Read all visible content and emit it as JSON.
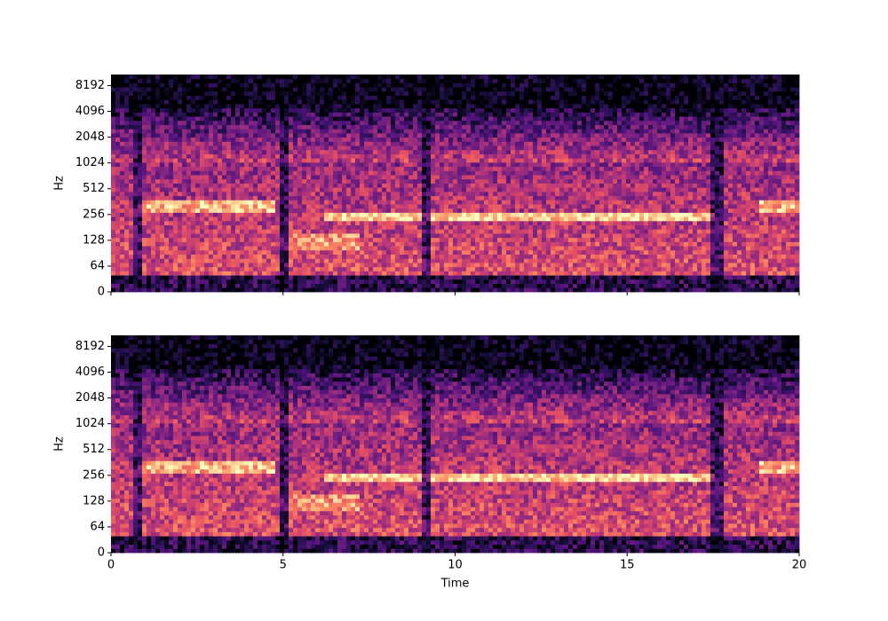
{
  "chart_data": [
    {
      "type": "spectrogram",
      "ylabel": "Hz",
      "yscale": "symlog",
      "linthresh": 64,
      "colormap": "magma",
      "xlim": [
        0,
        20
      ],
      "xticks": [
        0,
        5,
        10,
        15,
        20
      ],
      "show_xtick_labels": false,
      "ylim": [
        0,
        11025
      ],
      "yticks": [
        0,
        64,
        128,
        256,
        512,
        1024,
        2048,
        4096,
        8192
      ]
    },
    {
      "type": "spectrogram",
      "ylabel": "Hz",
      "xlabel": "Time",
      "yscale": "symlog",
      "linthresh": 64,
      "colormap": "magma",
      "xlim": [
        0,
        20
      ],
      "xticks": [
        0,
        5,
        10,
        15,
        20
      ],
      "show_xtick_labels": true,
      "ylim": [
        0,
        11025
      ],
      "yticks": [
        0,
        64,
        128,
        256,
        512,
        1024,
        2048,
        4096,
        8192
      ]
    }
  ]
}
